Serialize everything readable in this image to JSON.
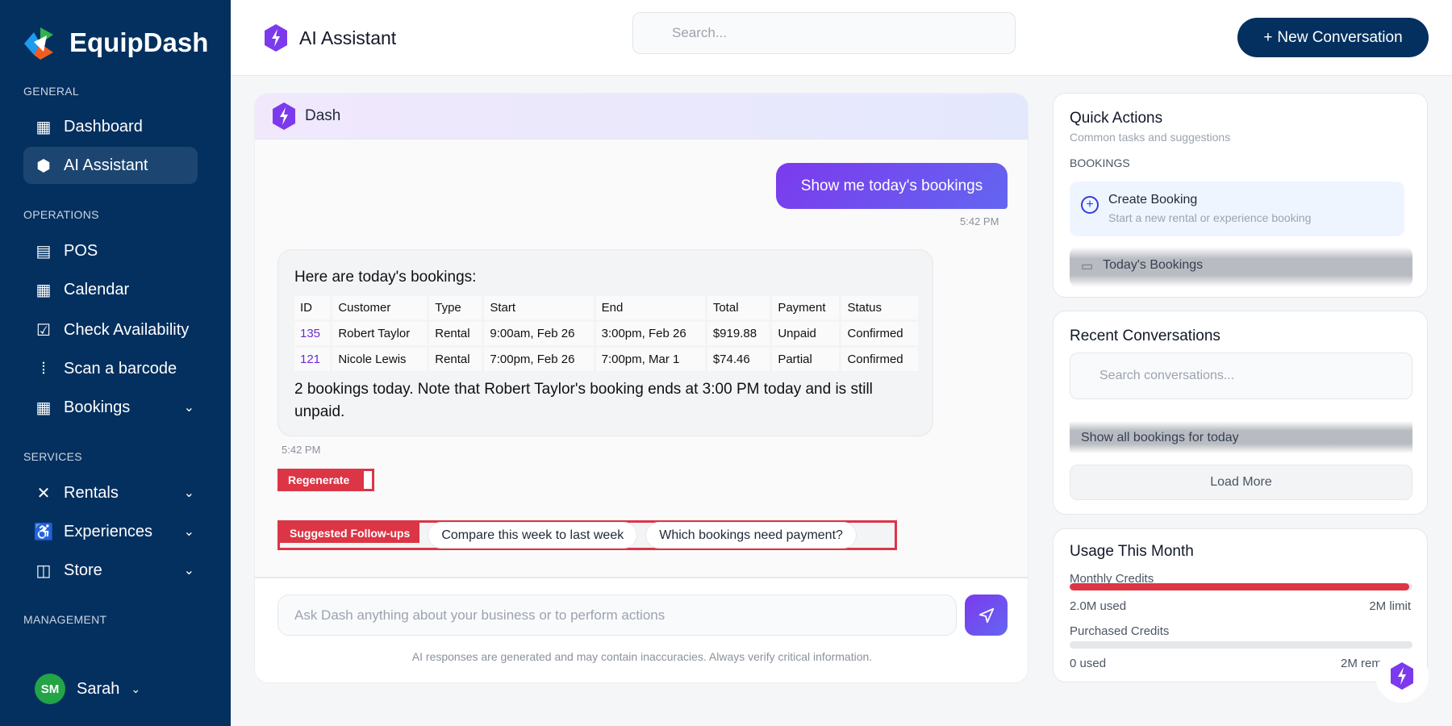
{
  "brand": {
    "name": "EquipDash"
  },
  "sidebar": {
    "sections": [
      "GENERAL",
      "OPERATIONS",
      "SERVICES",
      "MANAGEMENT"
    ],
    "items": [
      {
        "label": "Dashboard",
        "icon": "grid-icon"
      },
      {
        "label": "AI Assistant",
        "icon": "ai-hex-icon",
        "active": true
      },
      {
        "label": "POS",
        "icon": "pos-terminal-icon"
      },
      {
        "label": "Calendar",
        "icon": "calendar-icon"
      },
      {
        "label": "Check Availability",
        "icon": "calendar-check-icon"
      },
      {
        "label": "Scan a barcode",
        "icon": "barcode-scan-icon"
      },
      {
        "label": "Bookings",
        "icon": "bookings-icon",
        "expandable": true
      },
      {
        "label": "Rentals",
        "icon": "kayak-icon",
        "expandable": true
      },
      {
        "label": "Experiences",
        "icon": "hiker-icon",
        "expandable": true
      },
      {
        "label": "Store",
        "icon": "shopping-bag-icon",
        "expandable": true
      }
    ],
    "user": {
      "initials": "SM",
      "name": "Sarah",
      "avatar_color": "#22a447"
    }
  },
  "header": {
    "title": "AI Assistant",
    "search_placeholder": "Search...",
    "new_button": "New Conversation"
  },
  "chat": {
    "assistant_name": "Dash",
    "user_message": "Show me today's bookings",
    "user_time": "5:42 PM",
    "bot_intro": "Here are today's bookings:",
    "table": {
      "headers": [
        "ID",
        "Customer",
        "Type",
        "Start",
        "End",
        "Total",
        "Payment",
        "Status"
      ],
      "rows": [
        [
          "135",
          "Robert Taylor",
          "Rental",
          "9:00am, Feb 26",
          "3:00pm, Feb 26",
          "$919.88",
          "Unpaid",
          "Confirmed"
        ],
        [
          "121",
          "Nicole Lewis",
          "Rental",
          "7:00pm, Feb 26",
          "7:00pm, Mar 1",
          "$74.46",
          "Partial",
          "Confirmed"
        ]
      ]
    },
    "bot_summary": "2 bookings today. Note that Robert Taylor's booking ends at 3:00 PM today and is still unpaid.",
    "bot_time": "5:42 PM",
    "regenerate": "Regenerate",
    "followups_label": "Suggested Follow-ups",
    "followups": [
      "Compare this week to last week",
      "Which bookings need payment?"
    ],
    "input_placeholder": "Ask Dash anything about your business or to perform actions",
    "disclaimer": "AI responses are generated and may contain inaccuracies. Always verify critical information."
  },
  "quick_actions": {
    "title": "Quick Actions",
    "subtitle": "Common tasks and suggestions",
    "section": "BOOKINGS",
    "items": [
      {
        "title": "Create Booking",
        "desc": "Start a new rental or experience booking"
      },
      {
        "title": "Today's Bookings"
      }
    ]
  },
  "recent": {
    "title": "Recent Conversations",
    "search_placeholder": "Search conversations...",
    "items": [
      "Show all bookings for today"
    ],
    "load_more": "Load More"
  },
  "usage": {
    "title": "Usage This Month",
    "monthly_label": "Monthly Credits",
    "monthly_used": "2.0M used",
    "monthly_limit": "2M limit",
    "monthly_fraction": 1.0,
    "purchased_label": "Purchased Credits",
    "purchased_used": "0 used",
    "purchased_remaining": "2M rem",
    "purchased_fraction": 0,
    "bar_color": "#dc3545"
  },
  "colors": {
    "sidebar": "#04305f",
    "accent": "#7c3aed",
    "danger": "#dc3545"
  }
}
